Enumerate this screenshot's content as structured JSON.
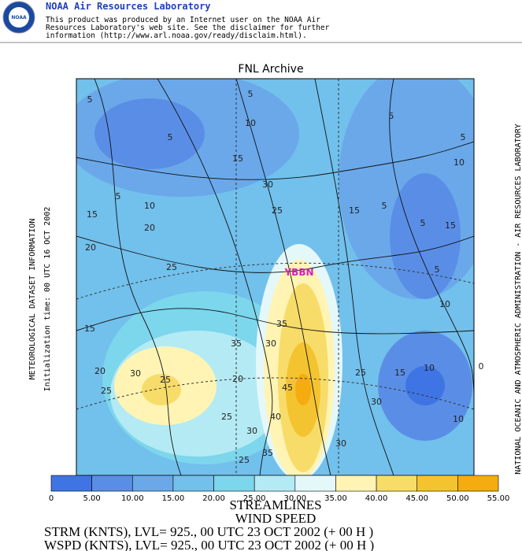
{
  "header": {
    "title": "NOAA Air Resources Laboratory",
    "logo": "NOAA",
    "lines": [
      "This product was produced by an Internet user on the NOAA Air",
      "Resources Laboratory's web site.  See the disclaimer for further",
      "information (http://www.arl.noaa.gov/ready/disclaim.html)."
    ]
  },
  "map": {
    "title": "FNL Archive",
    "station": "YBBN",
    "left_labels": [
      "METEOROLOGICAL DATASET INFORMATION",
      "Initialization time: 00 UTC 16 OCT 2002"
    ],
    "right_label": "NATIONAL OCEANIC AND ATMOSPHERIC ADMINISTRATION - AIR RESOURCES LABORATORY",
    "contour_labels": [
      "5",
      "5",
      "10",
      "5",
      "5",
      "5",
      "10",
      "15",
      "30",
      "25",
      "5",
      "10",
      "15",
      "15",
      "5",
      "5",
      "15",
      "20",
      "20",
      "25",
      "5",
      "10",
      "15",
      "35",
      "30",
      "35",
      "20",
      "30",
      "25",
      "25",
      "20",
      "25",
      "15",
      "10",
      "0",
      "45",
      "30",
      "10",
      "40",
      "25",
      "30",
      "30",
      "35",
      "25"
    ]
  },
  "colorbar": {
    "labels": [
      "0",
      "5.00",
      "10.00",
      "15.00",
      "20.00",
      "25.00",
      "30.00",
      "35.00",
      "40.00",
      "45.00",
      "50.00",
      "55.00"
    ],
    "colors": [
      "#3f74e4",
      "#5a8ee6",
      "#6aa8ea",
      "#72c0ec",
      "#7cd6ec",
      "#b4eaf4",
      "#e4f8fa",
      "#fff4b4",
      "#f8dc6a",
      "#f4c430",
      "#f4ac10"
    ]
  },
  "footer": {
    "lines": [
      "STREAMLINES",
      "WIND SPEED",
      "STRM (KNTS),  LVL= 925., 00 UTC 23 OCT 2002 (+ 00 H )",
      "WSPD (KNTS),  LVL= 925., 00 UTC 23 OCT 2002 (+ 00 H )"
    ]
  }
}
